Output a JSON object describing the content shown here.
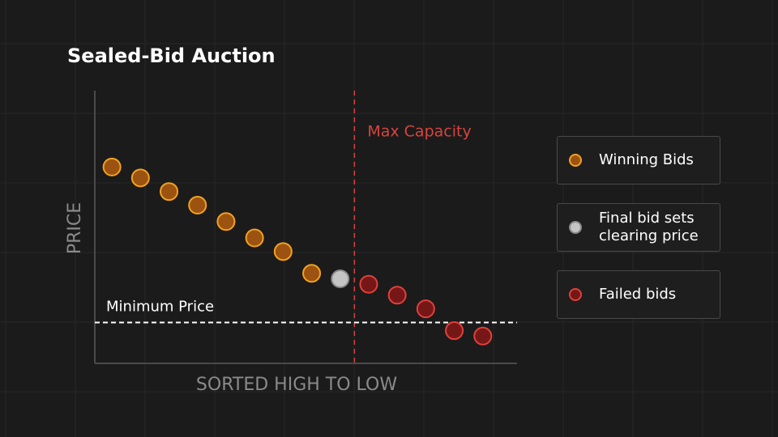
{
  "chart_data": {
    "type": "scatter",
    "title": "Sealed-Bid Auction",
    "xlabel": "SORTED HIGH TO LOW",
    "ylabel": "PRICE",
    "xlim": [
      0.4,
      15.2
    ],
    "ylim": [
      0,
      100
    ],
    "series": [
      {
        "name": "Winning Bids",
        "color": "#9c5210",
        "edgecolor": "#f2a21e",
        "x": [
          1,
          2,
          3,
          4,
          5,
          6,
          7,
          8
        ],
        "values": [
          72,
          68,
          63,
          58,
          52,
          46,
          41,
          33
        ]
      },
      {
        "name": "Final bid sets clearing price",
        "color": "#c4c4c4",
        "edgecolor": "#8a8a8a",
        "x": [
          9
        ],
        "values": [
          31
        ]
      },
      {
        "name": "Failed bids",
        "color": "#761717",
        "edgecolor": "#e0403a",
        "x": [
          10,
          11,
          12,
          13,
          14
        ],
        "values": [
          29,
          25,
          20,
          12,
          10
        ]
      }
    ],
    "annotations": {
      "max_capacity": {
        "label": "Max Capacity",
        "x": 9.5,
        "color": "#d8443c"
      },
      "minimum_price": {
        "label": "Minimum Price",
        "y": 15
      }
    }
  }
}
